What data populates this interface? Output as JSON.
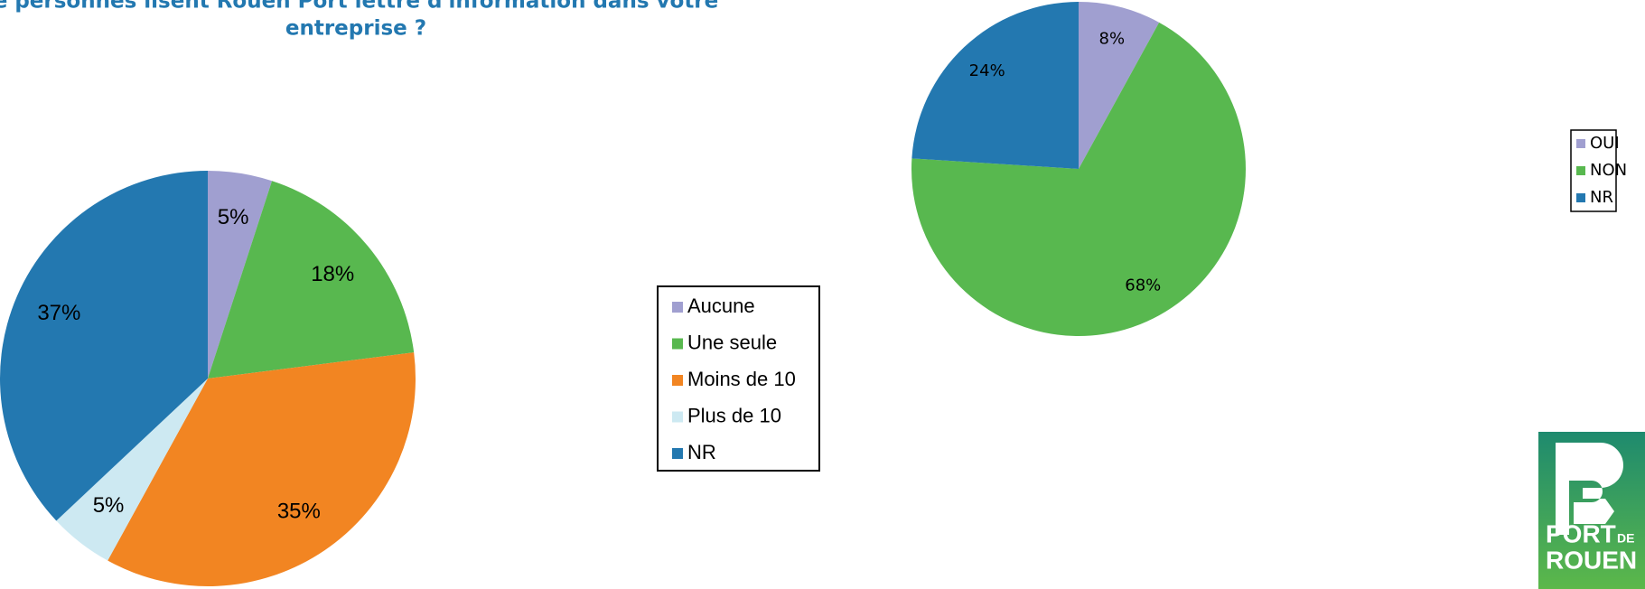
{
  "chart_data": [
    {
      "type": "pie",
      "title": [
        "e personnes lisent Rouen Port lettre d'information dans votre",
        "entreprise ?"
      ],
      "categories": [
        "Aucune",
        "Une seule",
        "Moins de 10",
        "Plus de 10",
        "NR"
      ],
      "values": [
        5,
        18,
        35,
        5,
        37
      ],
      "value_labels": [
        "5%",
        "18%",
        "35%",
        "5%",
        "37%"
      ],
      "colors": [
        "#a09fd0",
        "#58b84f",
        "#f28522",
        "#cde9f2",
        "#2378b0"
      ],
      "legend": "right"
    },
    {
      "type": "pie",
      "categories": [
        "OUI",
        "NON",
        "NR"
      ],
      "values": [
        8,
        68,
        24
      ],
      "value_labels": [
        "8%",
        "68%",
        "24%"
      ],
      "colors": [
        "#a09fd0",
        "#58b84f",
        "#2378b0"
      ],
      "legend": "right"
    }
  ],
  "logo": {
    "port": "PORT",
    "de": "DE",
    "rouen": "ROUEN"
  }
}
